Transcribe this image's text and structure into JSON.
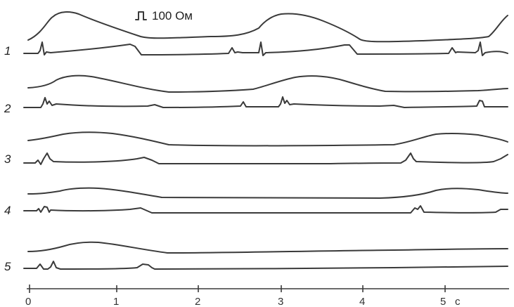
{
  "chart_data": {
    "type": "line",
    "title": "",
    "calibration_label": "100 Ом",
    "calibration_icon": "pulse-step-icon",
    "x_axis": {
      "unit_label": "с",
      "range": [
        0,
        5.8
      ],
      "ticks": [
        0,
        1,
        2,
        3,
        4,
        5
      ],
      "tick_labels": [
        "0",
        "1",
        "2",
        "3",
        "4",
        "5"
      ]
    },
    "grid": false,
    "color": "#3a3a3a",
    "records": [
      {
        "label": "1",
        "pulse_wave_peaks": [
          0.55,
          3.45
        ],
        "ecg_qrs_times": [
          0.18,
          2.82,
          5.48
        ],
        "ecg_t_times": [
          1.35,
          3.95
        ],
        "ecg_p_times": [
          2.45,
          5.12
        ]
      },
      {
        "label": "2",
        "pulse_wave_peaks": [
          0.95,
          3.85
        ],
        "ecg_qrs_times": [
          0.2,
          3.05,
          5.5
        ],
        "ecg_t_times": [
          1.6
        ],
        "ecg_p_times": [
          2.6
        ]
      },
      {
        "label": "3",
        "pulse_wave_peaks": [
          0.9,
          5.25
        ],
        "ecg_qrs_times": [
          0.22,
          4.68
        ],
        "ecg_t_times": [
          1.4
        ],
        "ecg_p_times": []
      },
      {
        "label": "4",
        "pulse_wave_peaks": [
          0.8,
          5.25
        ],
        "ecg_qrs_times": [
          0.22,
          4.82
        ],
        "ecg_t_times": [
          1.4
        ],
        "ecg_p_times": []
      },
      {
        "label": "5",
        "pulse_wave_peaks": [
          0.85
        ],
        "ecg_qrs_times": [
          0.3
        ],
        "ecg_t_times": [
          1.45
        ],
        "ecg_p_times": []
      }
    ]
  }
}
